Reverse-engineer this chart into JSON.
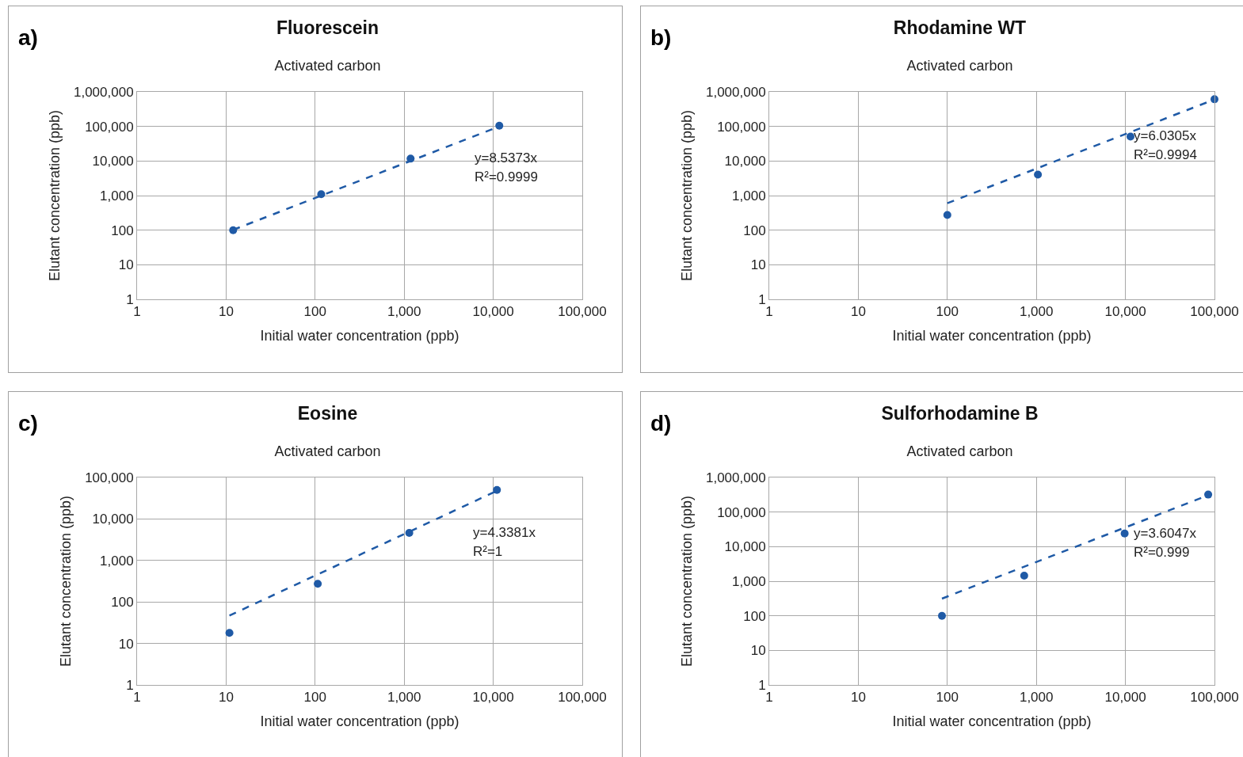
{
  "chart_data": [
    {
      "type": "scatter",
      "title": "Fluorescein",
      "subtitle": "Activated carbon",
      "xlabel": "Initial water concentration (ppb)",
      "ylabel": "Elutant concentration (ppb)",
      "annotations": [
        "a)",
        "y=8.5373x",
        "R²=0.9999"
      ],
      "log": "xy",
      "grid": true,
      "marker": "circle",
      "xlim": [
        1,
        100000
      ],
      "ylim": [
        1,
        1000000
      ],
      "xticks": [
        1,
        10,
        100,
        {
          "value": 1000,
          "label": "1,000"
        },
        {
          "value": 10000,
          "label": "10,000"
        },
        {
          "value": 100000,
          "label": "100,000"
        }
      ],
      "yticks": [
        1,
        10,
        100,
        {
          "value": 1000,
          "label": "1,000"
        },
        {
          "value": 10000,
          "label": "10,000"
        },
        {
          "value": 100000,
          "label": "100,000"
        },
        {
          "value": 1000000,
          "label": "1,000,000"
        }
      ],
      "series": [
        {
          "type": "scatter",
          "color": "#1f5aa6",
          "x": [
            12,
            117,
            1180,
            11700
          ],
          "values": [
            100,
            1100,
            11700,
            105000
          ]
        },
        {
          "type": "line",
          "color": "#1f5aa6",
          "line_style": "dashed",
          "marker": "none",
          "x": [
            12,
            11700
          ],
          "values": [
            102,
            99900
          ]
        }
      ]
    },
    {
      "type": "scatter",
      "title": "Rhodamine WT",
      "subtitle": "Activated carbon",
      "xlabel": "Initial water concentration (ppb)",
      "ylabel": "Elutant concentration (ppb)",
      "annotations": [
        "b)",
        "y=6.0305x",
        "R²=0.9994"
      ],
      "log": "xy",
      "grid": true,
      "marker": "circle",
      "xlim": [
        1,
        100000
      ],
      "ylim": [
        1,
        1000000
      ],
      "xticks": [
        1,
        10,
        100,
        {
          "value": 1000,
          "label": "1,000"
        },
        {
          "value": 10000,
          "label": "10,000"
        },
        {
          "value": 100000,
          "label": "100,000"
        }
      ],
      "yticks": [
        1,
        10,
        100,
        {
          "value": 1000,
          "label": "1,000"
        },
        {
          "value": 10000,
          "label": "10,000"
        },
        {
          "value": 100000,
          "label": "100,000"
        },
        {
          "value": 1000000,
          "label": "1,000,000"
        }
      ],
      "series": [
        {
          "type": "scatter",
          "color": "#1f5aa6",
          "x": [
            100,
            1040,
            11400,
            100000
          ],
          "values": [
            275,
            4050,
            51000,
            610000
          ]
        },
        {
          "type": "line",
          "color": "#1f5aa6",
          "line_style": "dashed",
          "marker": "none",
          "x": [
            100,
            100000
          ],
          "values": [
            603,
            603050
          ]
        }
      ]
    },
    {
      "type": "scatter",
      "title": "Eosine",
      "subtitle": "Activated carbon",
      "xlabel": "Initial water concentration (ppb)",
      "ylabel": "Elutant concentration (ppb)",
      "annotations": [
        "c)",
        "y=4.3381x",
        "R²=1"
      ],
      "log": "xy",
      "grid": true,
      "marker": "circle",
      "xlim": [
        1,
        100000
      ],
      "ylim": [
        1,
        100000
      ],
      "xticks": [
        1,
        10,
        100,
        {
          "value": 1000,
          "label": "1,000"
        },
        {
          "value": 10000,
          "label": "10,000"
        },
        {
          "value": 100000,
          "label": "100,000"
        }
      ],
      "yticks": [
        1,
        10,
        100,
        {
          "value": 1000,
          "label": "1,000"
        },
        {
          "value": 10000,
          "label": "10,000"
        },
        {
          "value": 100000,
          "label": "100,000"
        }
      ],
      "series": [
        {
          "type": "scatter",
          "color": "#1f5aa6",
          "x": [
            10.9,
            107,
            1140,
            11000
          ],
          "values": [
            18,
            275,
            4600,
            50000
          ]
        },
        {
          "type": "line",
          "color": "#1f5aa6",
          "line_style": "dashed",
          "marker": "none",
          "x": [
            10.9,
            11000
          ],
          "values": [
            47,
            47700
          ]
        }
      ]
    },
    {
      "type": "scatter",
      "title": "Sulforhodamine B",
      "subtitle": "Activated carbon",
      "xlabel": "Initial water concentration (ppb)",
      "ylabel": "Elutant concentration (ppb)",
      "annotations": [
        "d)",
        "y=3.6047x",
        "R²=0.999"
      ],
      "log": "xy",
      "grid": true,
      "marker": "circle",
      "xlim": [
        1,
        100000
      ],
      "ylim": [
        1,
        1000000
      ],
      "xticks": [
        1,
        10,
        100,
        {
          "value": 1000,
          "label": "1,000"
        },
        {
          "value": 10000,
          "label": "10,000"
        },
        {
          "value": 100000,
          "label": "100,000"
        }
      ],
      "yticks": [
        1,
        10,
        100,
        {
          "value": 1000,
          "label": "1,000"
        },
        {
          "value": 10000,
          "label": "10,000"
        },
        {
          "value": 100000,
          "label": "100,000"
        },
        {
          "value": 1000000,
          "label": "1,000,000"
        }
      ],
      "series": [
        {
          "type": "scatter",
          "color": "#1f5aa6",
          "x": [
            87,
            730,
            9800,
            85000
          ],
          "values": [
            100,
            1450,
            24000,
            320000
          ]
        },
        {
          "type": "line",
          "color": "#1f5aa6",
          "line_style": "dashed",
          "marker": "none",
          "x": [
            87,
            85000
          ],
          "values": [
            314,
            306000
          ]
        }
      ]
    }
  ]
}
